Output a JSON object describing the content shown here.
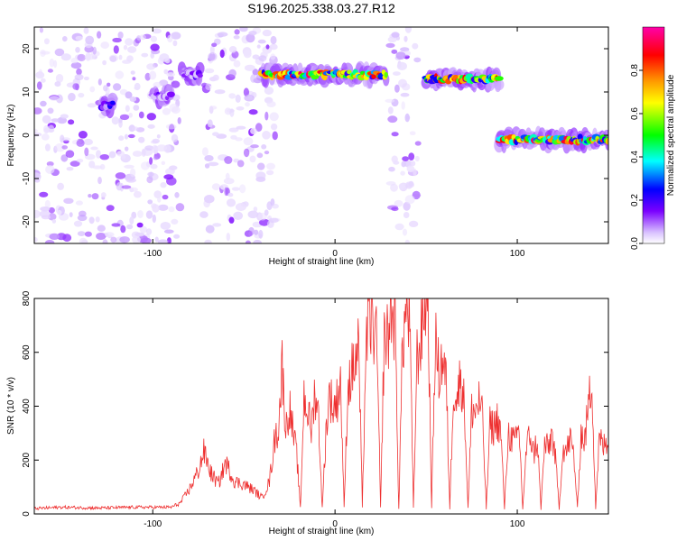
{
  "figure": {
    "title": "S196.2025.338.03.27.R12"
  },
  "chart_data": [
    {
      "type": "heatmap",
      "title": "S196.2025.338.03.27.R12",
      "xlabel": "Height of straight line (km)",
      "ylabel": "Frequency (Hz)",
      "xlim": [
        -165,
        150
      ],
      "ylim": [
        -25,
        25
      ],
      "x_ticks": [
        -100,
        0,
        100
      ],
      "y_ticks": [
        -20,
        -10,
        0,
        10,
        20
      ],
      "colorbar": {
        "label": "Normalized spectral amplitude",
        "range": [
          0,
          1
        ],
        "ticks": [
          "0.0",
          "0.2",
          "0.4",
          "0.6",
          "0.8"
        ],
        "colormap": [
          "#ffffff",
          "#d9c2ff",
          "#7a00ff",
          "#0000ff",
          "#00ffff",
          "#00ff00",
          "#ffff00",
          "#ff9900",
          "#ff0000",
          "#ff00aa"
        ]
      },
      "ridges": [
        {
          "x": [
            -128,
            -122
          ],
          "freq": 7,
          "amplitude": 0.35
        },
        {
          "x": [
            -100,
            -90
          ],
          "freq": 9,
          "amplitude": 0.25
        },
        {
          "x": [
            -84,
            -74
          ],
          "freq": 14,
          "amplitude": 0.3
        },
        {
          "x": [
            -40,
            28
          ],
          "freq": 14,
          "amplitude": 0.95
        },
        {
          "x": [
            50,
            90
          ],
          "freq": 13,
          "amplitude": 0.95
        },
        {
          "x": [
            90,
            150
          ],
          "freq": -1,
          "amplitude": 0.95
        }
      ],
      "noise_bands": [
        [
          -165,
          -85
        ],
        [
          -72,
          -32
        ],
        [
          30,
          46
        ]
      ]
    },
    {
      "type": "line",
      "xlabel": "Height of straight line (km)",
      "ylabel": "SNR (10 * v/v)",
      "xlim": [
        -165,
        150
      ],
      "ylim": [
        0,
        800
      ],
      "x_ticks": [
        -100,
        0,
        100
      ],
      "y_ticks": [
        0,
        200,
        400,
        600,
        800
      ],
      "series": [
        {
          "color": "#ee3030",
          "x": [
            -165,
            -150,
            -130,
            -110,
            -90,
            -85,
            -80,
            -75,
            -72,
            -68,
            -64,
            -60,
            -55,
            -50,
            -45,
            -40,
            -36,
            -33,
            -31,
            -29,
            -27,
            -25,
            -23,
            -21,
            -19,
            -17,
            -15,
            -13,
            -11,
            -9,
            -7,
            -5,
            -3,
            -1,
            1,
            3,
            5,
            7,
            9,
            11,
            13,
            15,
            17,
            19,
            21,
            23,
            25,
            27,
            29,
            31,
            33,
            35,
            37,
            39,
            41,
            43,
            45,
            47,
            49,
            51,
            53,
            55,
            57,
            59,
            61,
            63,
            65,
            67,
            69,
            71,
            73,
            75,
            77,
            79,
            81,
            83,
            85,
            87,
            89,
            91,
            93,
            95,
            97,
            99,
            101,
            103,
            105,
            107,
            109,
            111,
            113,
            115,
            117,
            119,
            121,
            123,
            125,
            127,
            129,
            131,
            133,
            135,
            137,
            139,
            141,
            143,
            145,
            147,
            150
          ],
          "y": [
            20,
            25,
            22,
            25,
            25,
            40,
            90,
            160,
            230,
            150,
            110,
            190,
            120,
            110,
            90,
            60,
            120,
            280,
            320,
            550,
            310,
            400,
            300,
            220,
            20,
            440,
            380,
            310,
            460,
            360,
            20,
            300,
            450,
            390,
            420,
            500,
            20,
            470,
            520,
            560,
            620,
            20,
            640,
            720,
            700,
            620,
            20,
            660,
            650,
            760,
            700,
            20,
            620,
            760,
            720,
            20,
            580,
            640,
            780,
            800,
            20,
            650,
            520,
            580,
            490,
            20,
            480,
            420,
            520,
            400,
            20,
            390,
            380,
            420,
            350,
            20,
            330,
            320,
            350,
            300,
            20,
            300,
            280,
            260,
            320,
            20,
            240,
            300,
            220,
            280,
            20,
            260,
            240,
            300,
            200,
            20,
            250,
            230,
            280,
            220,
            20,
            300,
            270,
            400,
            500,
            20,
            280,
            250,
            260
          ]
        }
      ]
    }
  ]
}
